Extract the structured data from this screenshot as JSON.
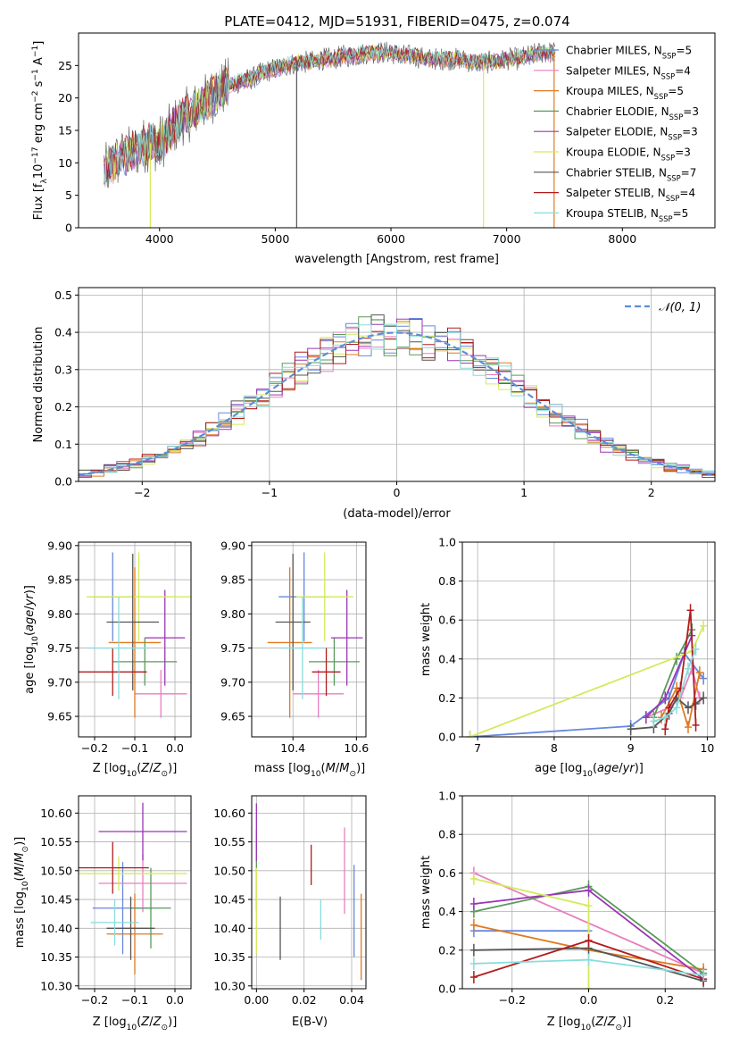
{
  "figure_title": "PLATE=0412, MJD=51931, FIBERID=0475, z=0.074",
  "colors": {
    "Chabrier MILES": "#6688dd",
    "Salpeter MILES": "#e87fbf",
    "Kroupa MILES": "#e07a20",
    "Chabrier ELODIE": "#5a9a5a",
    "Salpeter ELODIE": "#9a35b5",
    "Kroupa ELODIE": "#d4ea5a",
    "Chabrier STELIB": "#555555",
    "Salpeter STELIB": "#b01c1c",
    "Kroupa STELIB": "#88dcdc"
  },
  "chart_data": [
    {
      "id": "spectrum",
      "type": "line",
      "title": "PLATE=0412, MJD=51931, FIBERID=0475, z=0.074",
      "xlabel": "wavelength [Angstrom, rest frame]",
      "ylabel": "Flux [f_λ 10^-17 erg cm^-2 s^-1 A^-1]",
      "xlim": [
        3300,
        8800
      ],
      "ylim": [
        0,
        30
      ],
      "xticks": [
        4000,
        5000,
        6000,
        7000,
        8000
      ],
      "yticks": [
        0,
        5,
        10,
        15,
        20,
        25
      ],
      "legend_position": "right",
      "x": [
        3500,
        3600,
        3700,
        3800,
        3900,
        4000,
        4100,
        4200,
        4300,
        4400,
        4500,
        4600,
        4700,
        4800,
        4900,
        5000,
        5100,
        5200,
        5300,
        5400,
        5500,
        5600,
        5700,
        5800,
        5900,
        6000,
        6100,
        6200,
        6300,
        6400,
        6500,
        6600,
        6700,
        6800,
        6900,
        7000,
        7100,
        7200,
        7300,
        7400
      ],
      "y": [
        8,
        10,
        11,
        12,
        13,
        13,
        15,
        17,
        18,
        19.5,
        21,
        22,
        22.5,
        23,
        24,
        24.5,
        25,
        25.5,
        25.5,
        26,
        26,
        26.5,
        26.5,
        27,
        27,
        27,
        26.5,
        26.5,
        26,
        26,
        26,
        26,
        25.5,
        25.5,
        25.5,
        26,
        26,
        26.5,
        27,
        27
      ],
      "series": [
        {
          "name": "Chabrier MILES, N_SSP=5"
        },
        {
          "name": "Salpeter MILES, N_SSP=4"
        },
        {
          "name": "Kroupa MILES, N_SSP=5"
        },
        {
          "name": "Chabrier ELODIE, N_SSP=3"
        },
        {
          "name": "Salpeter ELODIE, N_SSP=3"
        },
        {
          "name": "Kroupa ELODIE, N_SSP=3"
        },
        {
          "name": "Chabrier STELIB, N_SSP=7"
        },
        {
          "name": "Salpeter STELIB, N_SSP=4"
        },
        {
          "name": "Kroupa STELIB, N_SSP=5"
        }
      ]
    },
    {
      "id": "residuals",
      "type": "line",
      "xlabel": "(data-model)/error",
      "ylabel": "Normed distribution",
      "xlim": [
        -2.5,
        2.5
      ],
      "ylim": [
        0,
        0.52
      ],
      "xticks": [
        -2,
        -1,
        0,
        1,
        2
      ],
      "yticks": [
        0.0,
        0.1,
        0.2,
        0.3,
        0.4,
        0.5
      ],
      "grid": true,
      "legend_position": "top-right",
      "bin_width": 0.1,
      "series": [
        {
          "name": "𝒩(0, 1)",
          "style": "dashed"
        }
      ]
    },
    {
      "id": "age_vs_Z",
      "type": "scatter",
      "xlabel": "Z [log10(Z/Z⊙)]",
      "ylabel": "age [log10(age/yr)]",
      "xlim": [
        -0.24,
        0.04
      ],
      "ylim": [
        9.62,
        9.905
      ],
      "xticks": [
        -0.2,
        -0.1,
        0.0
      ],
      "yticks": [
        9.65,
        9.7,
        9.75,
        9.8,
        9.85,
        9.9
      ],
      "grid": true,
      "points": [
        {
          "model": "Chabrier MILES",
          "x": -0.155,
          "y": 9.825,
          "xerr": 0.05,
          "yerr": 0.065
        },
        {
          "model": "Salpeter MILES",
          "x": -0.035,
          "y": 9.683,
          "xerr": 0.065,
          "yerr": 0.035
        },
        {
          "model": "Kroupa MILES",
          "x": -0.1,
          "y": 9.758,
          "xerr": 0.065,
          "yerr": 0.11
        },
        {
          "model": "Chabrier ELODIE",
          "x": -0.075,
          "y": 9.73,
          "xerr": 0.08,
          "yerr": 0.035
        },
        {
          "model": "Salpeter ELODIE",
          "x": -0.025,
          "y": 9.765,
          "xerr": 0.05,
          "yerr": 0.07
        },
        {
          "model": "Kroupa ELODIE",
          "x": -0.09,
          "y": 9.825,
          "xerr": 0.13,
          "yerr": 0.065
        },
        {
          "model": "Chabrier STELIB",
          "x": -0.105,
          "y": 9.788,
          "xerr": 0.065,
          "yerr": 0.1
        },
        {
          "model": "Salpeter STELIB",
          "x": -0.155,
          "y": 9.715,
          "xerr": 0.085,
          "yerr": 0.035
        },
        {
          "model": "Kroupa STELIB",
          "x": -0.14,
          "y": 9.75,
          "xerr": 0.075,
          "yerr": 0.075
        }
      ]
    },
    {
      "id": "age_vs_mass",
      "type": "scatter",
      "xlabel": "mass [log10(M/M⊙)]",
      "xlim": [
        10.27,
        10.63
      ],
      "ylim": [
        9.62,
        9.905
      ],
      "xticks": [
        10.4,
        10.6
      ],
      "yticks": [
        9.65,
        9.7,
        9.75,
        9.8,
        9.85,
        9.9
      ],
      "grid": true,
      "points": [
        {
          "model": "Chabrier MILES",
          "x": 10.435,
          "y": 9.825,
          "xerr": 0.08,
          "yerr": 0.065
        },
        {
          "model": "Salpeter MILES",
          "x": 10.48,
          "y": 9.683,
          "xerr": 0.08,
          "yerr": 0.035
        },
        {
          "model": "Kroupa MILES",
          "x": 10.39,
          "y": 9.758,
          "xerr": 0.07,
          "yerr": 0.11
        },
        {
          "model": "Chabrier ELODIE",
          "x": 10.53,
          "y": 9.73,
          "xerr": 0.08,
          "yerr": 0.035
        },
        {
          "model": "Salpeter ELODIE",
          "x": 10.57,
          "y": 9.765,
          "xerr": 0.05,
          "yerr": 0.07
        },
        {
          "model": "Kroupa ELODIE",
          "x": 10.5,
          "y": 9.825,
          "xerr": 0.09,
          "yerr": 0.065
        },
        {
          "model": "Chabrier STELIB",
          "x": 10.4,
          "y": 9.788,
          "xerr": 0.055,
          "yerr": 0.1
        },
        {
          "model": "Salpeter STELIB",
          "x": 10.505,
          "y": 9.715,
          "xerr": 0.045,
          "yerr": 0.035
        },
        {
          "model": "Kroupa STELIB",
          "x": 10.43,
          "y": 9.75,
          "xerr": 0.07,
          "yerr": 0.075
        }
      ]
    },
    {
      "id": "weight_vs_age",
      "type": "line",
      "xlabel": "age [log10(age/yr)]",
      "ylabel": "mass weight",
      "xlim": [
        6.8,
        10.1
      ],
      "ylim": [
        0,
        1
      ],
      "xticks": [
        7,
        8,
        9,
        10
      ],
      "yticks": [
        0.0,
        0.2,
        0.4,
        0.6,
        0.8,
        1.0
      ],
      "grid": true,
      "series": [
        {
          "model": "Chabrier MILES",
          "x": [
            6.9,
            9.0,
            9.5,
            9.7,
            9.95
          ],
          "y": [
            0.0,
            0.055,
            0.2,
            0.43,
            0.3
          ]
        },
        {
          "model": "Salpeter MILES",
          "x": [
            9.2,
            9.5,
            9.65,
            9.8,
            9.9
          ],
          "y": [
            0.1,
            0.15,
            0.2,
            0.35,
            0.2
          ]
        },
        {
          "model": "Kroupa MILES",
          "x": [
            9.4,
            9.6,
            9.75,
            9.9
          ],
          "y": [
            0.1,
            0.25,
            0.05,
            0.33
          ]
        },
        {
          "model": "Chabrier ELODIE",
          "x": [
            9.3,
            9.6,
            9.8
          ],
          "y": [
            0.1,
            0.4,
            0.55
          ]
        },
        {
          "model": "Salpeter ELODIE",
          "x": [
            9.2,
            9.45,
            9.8
          ],
          "y": [
            0.1,
            0.2,
            0.52
          ]
        },
        {
          "model": "Kroupa ELODIE",
          "x": [
            6.9,
            9.8,
            9.95
          ],
          "y": [
            0.0,
            0.44,
            0.57
          ]
        },
        {
          "model": "Chabrier STELIB",
          "x": [
            9.0,
            9.3,
            9.5,
            9.6,
            9.75,
            9.85,
            9.95
          ],
          "y": [
            0.04,
            0.05,
            0.12,
            0.2,
            0.15,
            0.17,
            0.2
          ]
        },
        {
          "model": "Salpeter STELIB",
          "x": [
            9.45,
            9.5,
            9.65,
            9.78,
            9.85
          ],
          "y": [
            0.04,
            0.15,
            0.25,
            0.65,
            0.06
          ]
        },
        {
          "model": "Kroupa STELIB",
          "x": [
            9.3,
            9.45,
            9.6,
            9.75,
            9.85
          ],
          "y": [
            0.08,
            0.1,
            0.15,
            0.35,
            0.45
          ]
        }
      ]
    },
    {
      "id": "mass_vs_Z",
      "type": "scatter",
      "xlabel": "Z [log10(Z/Z⊙)]",
      "ylabel": "mass [log10(M/M⊙)]",
      "xlim": [
        -0.24,
        0.04
      ],
      "ylim": [
        10.295,
        10.63
      ],
      "xticks": [
        -0.2,
        -0.1,
        0.0
      ],
      "yticks": [
        10.3,
        10.35,
        10.4,
        10.45,
        10.5,
        10.55,
        10.6
      ],
      "grid": true,
      "points": [
        {
          "model": "Chabrier MILES",
          "x": -0.13,
          "y": 10.435,
          "xerr": 0.075,
          "yerr": 0.08
        },
        {
          "model": "Salpeter MILES",
          "x": -0.08,
          "y": 10.478,
          "xerr": 0.11,
          "yerr": 0.05
        },
        {
          "model": "Kroupa MILES",
          "x": -0.1,
          "y": 10.39,
          "xerr": 0.07,
          "yerr": 0.07
        },
        {
          "model": "Chabrier ELODIE",
          "x": -0.06,
          "y": 10.435,
          "xerr": 0.05,
          "yerr": 0.07
        },
        {
          "model": "Salpeter ELODIE",
          "x": -0.08,
          "y": 10.568,
          "xerr": 0.11,
          "yerr": 0.05
        },
        {
          "model": "Kroupa ELODIE",
          "x": -0.14,
          "y": 10.495,
          "xerr": 0.17,
          "yerr": 0.03
        },
        {
          "model": "Chabrier STELIB",
          "x": -0.11,
          "y": 10.4,
          "xerr": 0.06,
          "yerr": 0.055
        },
        {
          "model": "Salpeter STELIB",
          "x": -0.155,
          "y": 10.505,
          "xerr": 0.09,
          "yerr": 0.045
        },
        {
          "model": "Kroupa STELIB",
          "x": -0.15,
          "y": 10.41,
          "xerr": 0.06,
          "yerr": 0.04
        }
      ]
    },
    {
      "id": "mass_vs_ebv",
      "type": "scatter",
      "xlabel": "E(B-V)",
      "xlim": [
        -0.002,
        0.046
      ],
      "ylim": [
        10.295,
        10.63
      ],
      "xticks": [
        0.0,
        0.02,
        0.04
      ],
      "yticks": [
        10.3,
        10.35,
        10.4,
        10.45,
        10.5,
        10.55,
        10.6
      ],
      "grid": true,
      "points": [
        {
          "model": "Chabrier MILES",
          "x": 0.041,
          "y": 10.43,
          "yerr": 0.08
        },
        {
          "model": "Salpeter MILES",
          "x": 0.037,
          "y": 10.5,
          "yerr": 0.075
        },
        {
          "model": "Kroupa MILES",
          "x": 0.044,
          "y": 10.385,
          "yerr": 0.075
        },
        {
          "model": "Chabrier ELODIE",
          "x": 0.0,
          "y": 10.5,
          "yerr": 0.07
        },
        {
          "model": "Salpeter ELODIE",
          "x": 0.0,
          "y": 10.567,
          "yerr": 0.05
        },
        {
          "model": "Kroupa ELODIE",
          "x": 0.0,
          "y": 10.43,
          "yerr": 0.075
        },
        {
          "model": "Chabrier STELIB",
          "x": 0.01,
          "y": 10.4,
          "yerr": 0.055
        },
        {
          "model": "Salpeter STELIB",
          "x": 0.023,
          "y": 10.51,
          "yerr": 0.035
        },
        {
          "model": "Kroupa STELIB",
          "x": 0.027,
          "y": 10.415,
          "yerr": 0.035
        }
      ]
    },
    {
      "id": "weight_vs_Z",
      "type": "line",
      "xlabel": "Z [log10(Z/Z⊙)]",
      "ylabel": "mass weight",
      "xlim": [
        -0.33,
        0.33
      ],
      "ylim": [
        0,
        1
      ],
      "xticks": [
        -0.2,
        0.0,
        0.2
      ],
      "yticks": [
        0.0,
        0.2,
        0.4,
        0.6,
        0.8,
        1.0
      ],
      "grid": true,
      "series": [
        {
          "model": "Chabrier MILES",
          "x": [
            -0.3,
            0.0
          ],
          "y": [
            0.3,
            0.3
          ]
        },
        {
          "model": "Salpeter MILES",
          "x": [
            -0.3,
            0.3
          ],
          "y": [
            0.6,
            0.08
          ]
        },
        {
          "model": "Kroupa MILES",
          "x": [
            -0.3,
            0.0,
            0.3
          ],
          "y": [
            0.33,
            0.2,
            0.1
          ]
        },
        {
          "model": "Chabrier ELODIE",
          "x": [
            -0.3,
            0.0,
            0.3
          ],
          "y": [
            0.4,
            0.53,
            0.08
          ]
        },
        {
          "model": "Salpeter ELODIE",
          "x": [
            -0.3,
            0.0,
            0.3
          ],
          "y": [
            0.44,
            0.51,
            0.05
          ]
        },
        {
          "model": "Kroupa ELODIE",
          "x": [
            -0.3,
            0.0,
            0.0
          ],
          "y": [
            0.57,
            0.43,
            0.0
          ]
        },
        {
          "model": "Chabrier STELIB",
          "x": [
            -0.3,
            0.0,
            0.3
          ],
          "y": [
            0.2,
            0.21,
            0.04
          ]
        },
        {
          "model": "Salpeter STELIB",
          "x": [
            -0.3,
            0.0,
            0.3
          ],
          "y": [
            0.06,
            0.25,
            0.05
          ]
        },
        {
          "model": "Kroupa STELIB",
          "x": [
            -0.3,
            0.0,
            0.3
          ],
          "y": [
            0.13,
            0.15,
            0.07
          ]
        }
      ]
    }
  ]
}
